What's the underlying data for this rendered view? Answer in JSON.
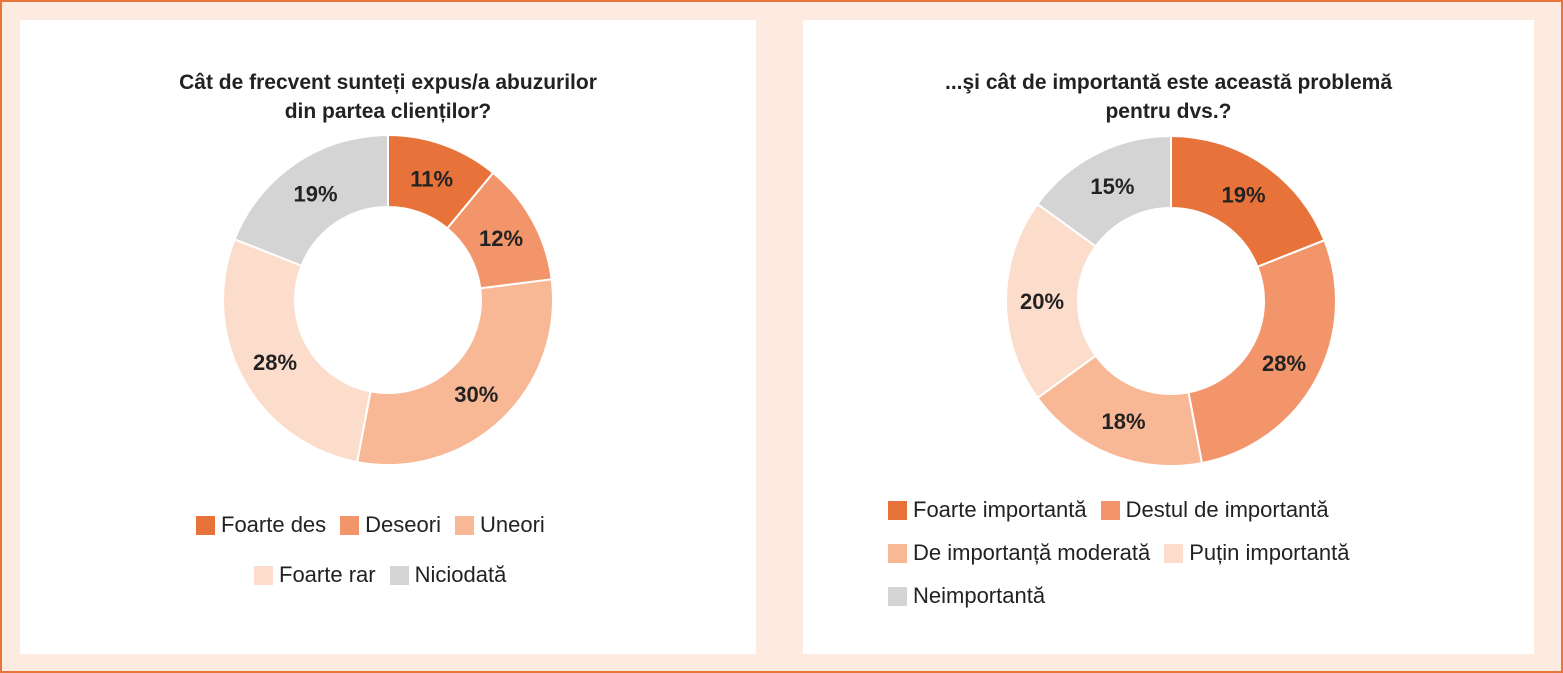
{
  "chart_data": [
    {
      "type": "pie",
      "title": [
        "Cât de frecvent sunteți expus/a abuzurilor",
        "din partea clienților?"
      ],
      "categories": [
        "Foarte des",
        "Deseori",
        "Uneori",
        "Foarte rar",
        "Niciodată"
      ],
      "values": [
        11,
        12,
        30,
        28,
        19
      ],
      "labels": [
        "11%",
        "12%",
        "30%",
        "28%",
        "19%"
      ],
      "colors": [
        "#e8733a",
        "#f2956a",
        "#f8b896",
        "#fcddcc",
        "#d4d4d4"
      ],
      "legend_position": "bottom"
    },
    {
      "type": "pie",
      "title": [
        "...şi cât de importantă este această problemă",
        "pentru dvs.?"
      ],
      "categories": [
        "Foarte importantă",
        "Destul de importantă",
        "De importanță moderată",
        "Puțin importantă",
        "Neimportantă"
      ],
      "values": [
        19,
        28,
        18,
        20,
        15
      ],
      "labels": [
        "19%",
        "28%",
        "18%",
        "20%",
        "15%"
      ],
      "colors": [
        "#e8733a",
        "#f2956a",
        "#f8b896",
        "#fcddcc",
        "#d4d4d4"
      ],
      "legend_position": "bottom"
    }
  ]
}
